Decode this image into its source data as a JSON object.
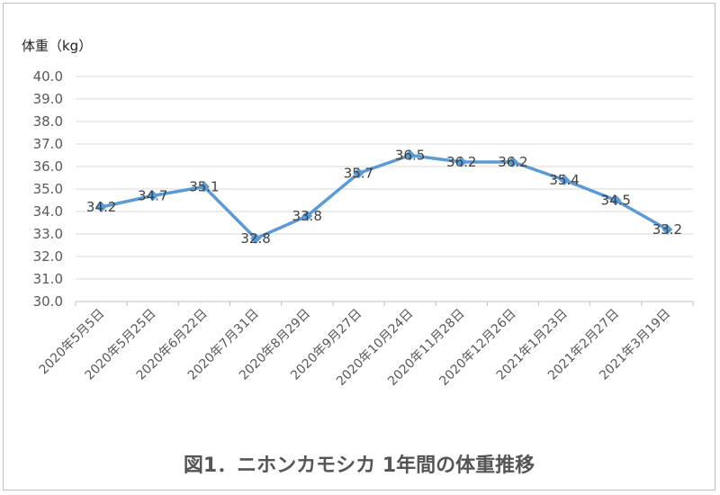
{
  "chart_data": {
    "type": "line",
    "ylabel": "体重（kg）",
    "title": "図1．ニホンカモシカ 1年間の体重推移",
    "categories": [
      "2020年5月5日",
      "2020年5月25日",
      "2020年6月22日",
      "2020年7月31日",
      "2020年8月29日",
      "2020年9月27日",
      "2020年10月24日",
      "2020年11月28日",
      "2020年12月26日",
      "2021年1月23日",
      "2021年2月27日",
      "2021年3月19日"
    ],
    "series": [
      {
        "values": [
          34.2,
          34.7,
          35.1,
          32.8,
          33.8,
          35.7,
          36.5,
          36.2,
          36.2,
          35.4,
          34.5,
          33.2
        ]
      }
    ],
    "data_labels": [
      "34.2",
      "34.7",
      "35.1",
      "32.8",
      "33.8",
      "35.7",
      "36.5",
      "36.2",
      "36.2",
      "35.4",
      "34.5",
      "33.2"
    ],
    "y_ticks": [
      "30.0",
      "31.0",
      "32.0",
      "33.0",
      "34.0",
      "35.0",
      "36.0",
      "37.0",
      "38.0",
      "39.0",
      "40.0"
    ],
    "ylim": [
      30,
      40
    ],
    "grid": true,
    "legend": "none",
    "line_color": "#5b9bd5",
    "grid_color": "#d9d9d9"
  }
}
